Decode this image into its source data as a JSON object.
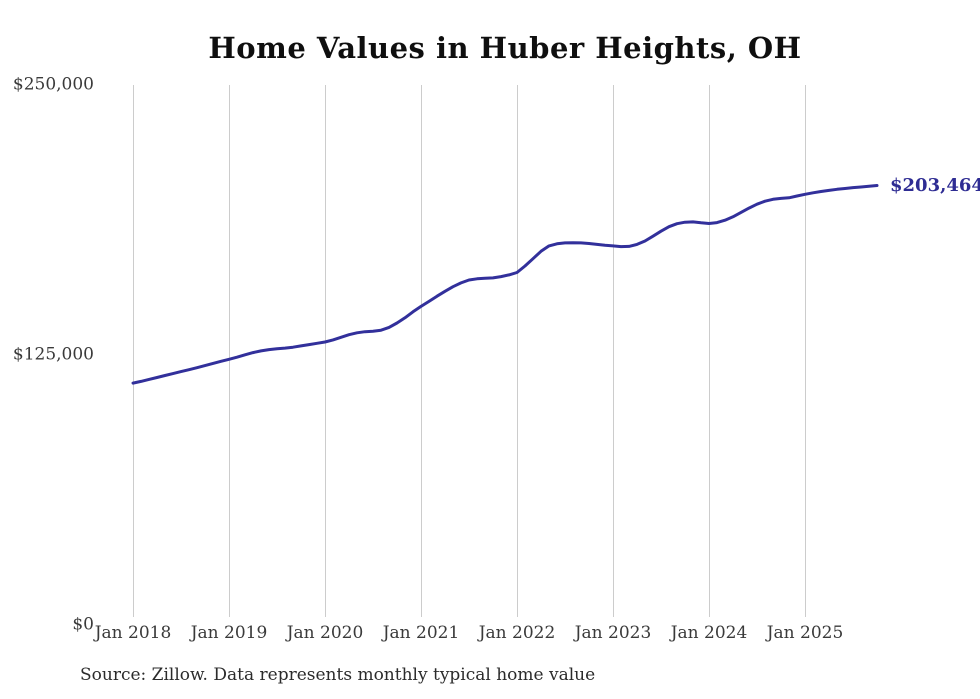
{
  "page": {
    "background": "#ffffff"
  },
  "colors": {
    "line": "#32309b",
    "end_label": "#2e2c93",
    "grid": "#cccccc",
    "tick_text": "#3a3a3a",
    "title_text": "#0f0f0f",
    "source_text": "#2b2b2b"
  },
  "chart_data": {
    "type": "line",
    "title": "Home Values in Huber Heights, OH",
    "xlabel": "",
    "ylabel": "",
    "ylim": [
      0,
      250000
    ],
    "grid": "vertical-only",
    "legend": "none",
    "end_label": "$203,464",
    "source": "Source: Zillow. Data represents monthly typical home value",
    "y_ticks": [
      {
        "label": "$0",
        "value": 0
      },
      {
        "label": "$125,000",
        "value": 125000
      },
      {
        "label": "$250,000",
        "value": 250000
      }
    ],
    "x_ticks": [
      {
        "label": "Jan 2018",
        "month_index": 0
      },
      {
        "label": "Jan 2019",
        "month_index": 12
      },
      {
        "label": "Jan 2020",
        "month_index": 24
      },
      {
        "label": "Jan 2021",
        "month_index": 36
      },
      {
        "label": "Jan 2022",
        "month_index": 48
      },
      {
        "label": "Jan 2023",
        "month_index": 60
      },
      {
        "label": "Jan 2024",
        "month_index": 72
      },
      {
        "label": "Jan 2025",
        "month_index": 84
      }
    ],
    "series": [
      {
        "name": "Typical home value",
        "interval": "monthly",
        "start_month": "2018-01",
        "end_month": "2025-10",
        "final_value": 203464,
        "values": [
          112000,
          112800,
          113700,
          114600,
          115500,
          116400,
          117300,
          118200,
          119100,
          120100,
          121100,
          122100,
          123000,
          124000,
          125100,
          126100,
          126900,
          127500,
          127900,
          128200,
          128600,
          129200,
          129800,
          130400,
          131000,
          132000,
          133200,
          134400,
          135300,
          135800,
          136000,
          136500,
          137800,
          139800,
          142200,
          145000,
          147500,
          149800,
          152200,
          154500,
          156600,
          158400,
          159700,
          160300,
          160500,
          160700,
          161300,
          162100,
          163200,
          166200,
          169600,
          173000,
          175500,
          176500,
          176900,
          177000,
          176900,
          176600,
          176200,
          175800,
          175500,
          175200,
          175300,
          176200,
          177800,
          180000,
          182300,
          184400,
          185800,
          186500,
          186600,
          186200,
          185900,
          186300,
          187400,
          189000,
          191000,
          193000,
          194800,
          196200,
          197100,
          197500,
          197800,
          198600,
          199400,
          200100,
          200700,
          201200,
          201700,
          202100,
          202500,
          202800,
          203100,
          203464
        ]
      }
    ]
  }
}
